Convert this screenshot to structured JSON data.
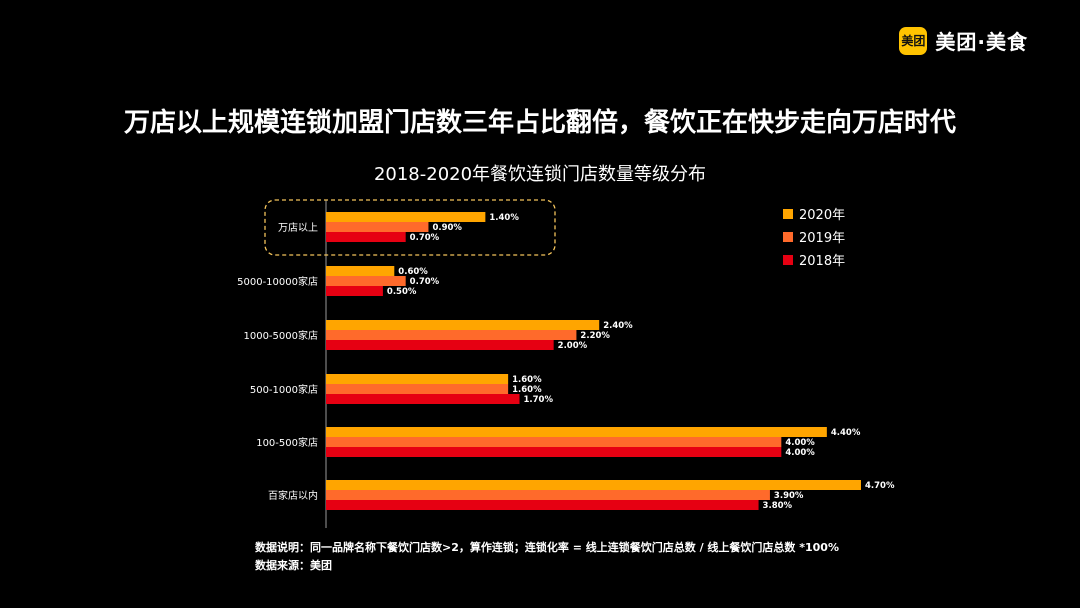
{
  "brand": {
    "badge": "美团",
    "name": "美团·美食"
  },
  "headline": "万店以上规模连锁加盟门店数三年占比翻倍，餐饮正在快步走向万店时代",
  "chart_data": {
    "type": "bar",
    "orientation": "horizontal",
    "title": "2018-2020年餐饮连锁门店数量等级分布",
    "categories": [
      "万店以上",
      "5000-10000家店",
      "1000-5000家店",
      "500-1000家店",
      "100-500家店",
      "百家店以内"
    ],
    "series": [
      {
        "name": "2020年",
        "color": "#FFA500",
        "values": [
          1.4,
          0.6,
          2.4,
          1.6,
          4.4,
          4.7
        ],
        "labels": [
          "1.40%",
          "0.60%",
          "2.40%",
          "1.60%",
          "4.40%",
          "4.70%"
        ]
      },
      {
        "name": "2019年",
        "color": "#FF6A2B",
        "values": [
          0.9,
          0.7,
          2.2,
          1.6,
          4.0,
          3.9
        ],
        "labels": [
          "0.90%",
          "0.70%",
          "2.20%",
          "1.60%",
          "4.00%",
          "3.90%"
        ]
      },
      {
        "name": "2018年",
        "color": "#E60012",
        "values": [
          0.7,
          0.5,
          2.0,
          1.7,
          4.0,
          3.8
        ],
        "labels": [
          "0.70%",
          "0.50%",
          "2.00%",
          "1.70%",
          "4.00%",
          "3.80%"
        ]
      }
    ],
    "xlim": [
      0,
      5.4
    ],
    "legend_position": "top-right",
    "highlight_category": "万店以上",
    "highlight_color": "#F3C35B",
    "grid": false
  },
  "notes": {
    "description": "数据说明：同一品牌名称下餐饮门店数>2，算作连锁；连锁化率 = 线上连锁餐饮门店总数 / 线上餐饮门店总数 *100%",
    "source": "数据来源：美团"
  }
}
